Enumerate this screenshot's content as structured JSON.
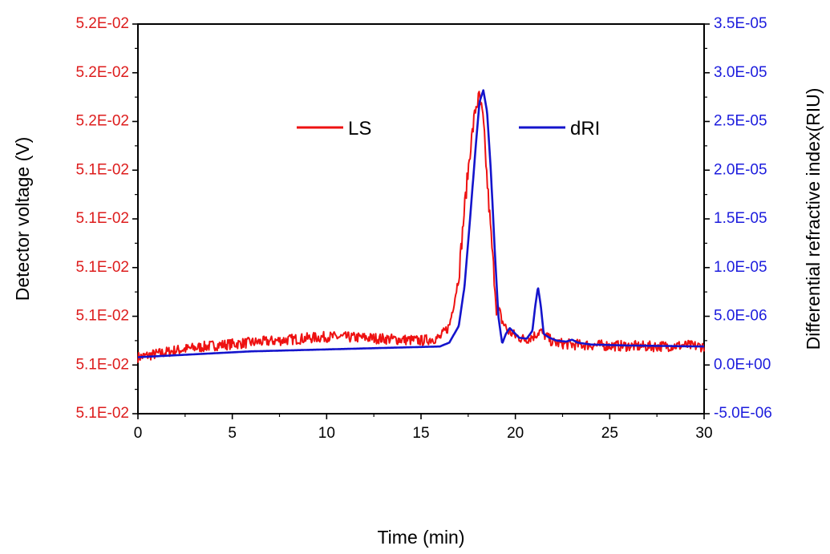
{
  "chart_data": {
    "type": "line",
    "title": "",
    "xlabel": "Time (min)",
    "ylabel_left": "Detector voltage (V)",
    "ylabel_right": "Differential refractive index(RIU)",
    "xlim": [
      0,
      30
    ],
    "x_ticks": [
      "0",
      "5",
      "10",
      "15",
      "20",
      "25",
      "30"
    ],
    "x_tick_values": [
      0,
      5,
      10,
      15,
      20,
      25,
      30
    ],
    "y_left_ticks": [
      "5.1E-02",
      "5.1E-02",
      "5.1E-02",
      "5.1E-02",
      "5.1E-02",
      "5.1E-02",
      "5.2E-02",
      "5.2E-02",
      "5.2E-02"
    ],
    "y_right_ticks": [
      "-5.0E-06",
      "0.0E+00",
      "5.0E-06",
      "1.0E-05",
      "1.5E-05",
      "2.0E-05",
      "2.5E-05",
      "3.0E-05",
      "3.5E-05"
    ],
    "y_right_lim": [
      -5e-06,
      3.5e-05
    ],
    "y_left_color": "#dd1c1c",
    "y_right_color": "#1c1cdd",
    "grid": false,
    "legend_placement": "top-center",
    "series": [
      {
        "name": "LS",
        "axis": "left",
        "color": "#ee1111",
        "noisy": true,
        "x": [
          0,
          2,
          4,
          6,
          8,
          10,
          12,
          14,
          15,
          16,
          16.5,
          17,
          17.3,
          17.6,
          17.9,
          18.1,
          18.3,
          18.5,
          18.8,
          19.0,
          19.3,
          19.6,
          20,
          20.5,
          21,
          21.3,
          21.6,
          22,
          23,
          25,
          27,
          29,
          30
        ],
        "values": [
          0.78,
          1.5,
          2.0,
          2.3,
          2.6,
          2.9,
          2.8,
          2.6,
          2.5,
          2.8,
          4.0,
          9.0,
          16.0,
          22.0,
          26.5,
          27.5,
          25.0,
          19.0,
          11.0,
          6.0,
          4.5,
          3.5,
          3.0,
          2.6,
          3.0,
          3.5,
          3.0,
          2.3,
          2.1,
          2.0,
          1.9,
          2.0,
          1.9
        ]
      },
      {
        "name": "dRI",
        "axis": "right",
        "color": "#1414cc",
        "noisy": false,
        "x": [
          0,
          2,
          4,
          6,
          8,
          10,
          12,
          14,
          15,
          16,
          16.5,
          17,
          17.3,
          17.6,
          17.9,
          18.1,
          18.3,
          18.5,
          18.7,
          18.9,
          19.1,
          19.3,
          19.5,
          19.7,
          19.9,
          20.2,
          20.6,
          20.9,
          21.05,
          21.2,
          21.35,
          21.5,
          21.8,
          22.2,
          22.7,
          23.0,
          23.3,
          24,
          26,
          28,
          30
        ],
        "values": [
          0.8,
          1.0,
          1.2,
          1.4,
          1.5,
          1.6,
          1.7,
          1.8,
          1.85,
          1.9,
          2.3,
          4.0,
          8.0,
          15.0,
          22.5,
          27.0,
          28.2,
          26.0,
          20.0,
          12.0,
          5.0,
          2.2,
          3.2,
          3.8,
          3.4,
          2.8,
          2.7,
          3.5,
          6.0,
          8.0,
          6.0,
          3.2,
          2.8,
          2.5,
          2.4,
          2.6,
          2.3,
          2.1,
          2.0,
          1.95,
          1.9
        ]
      }
    ]
  }
}
